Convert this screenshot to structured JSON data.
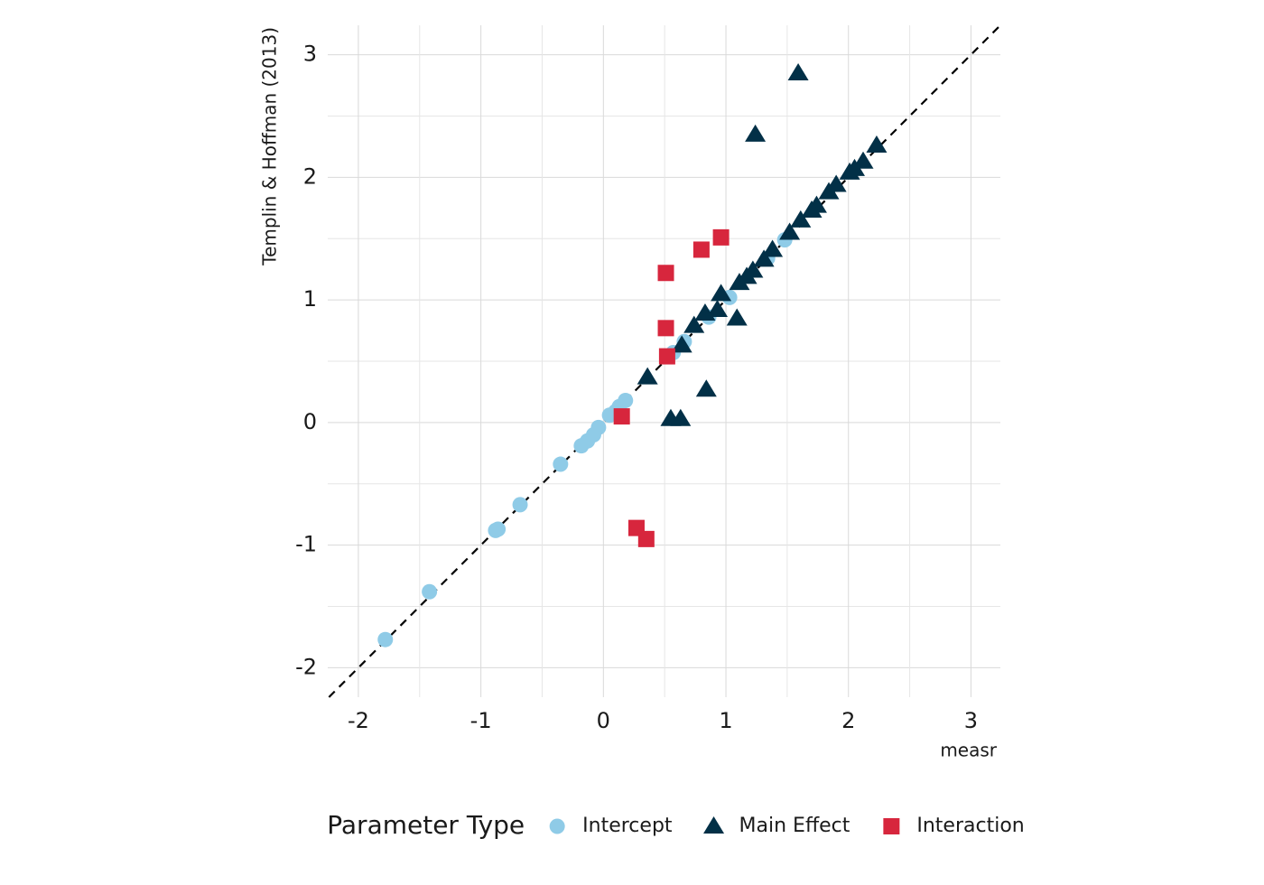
{
  "chart_data": {
    "type": "scatter",
    "x_label": "measr",
    "y_label": "Templin & Hoffman (2013)",
    "legend_title": "Parameter Type",
    "legend_position": "bottom",
    "grid": true,
    "identity_line": true,
    "xlim": [
      -2.25,
      3.24
    ],
    "ylim": [
      -2.24,
      3.24
    ],
    "xticks": [
      -2,
      -1,
      0,
      1,
      2,
      3
    ],
    "yticks": [
      -2,
      -1,
      0,
      1,
      2,
      3
    ],
    "series": [
      {
        "name": "Intercept",
        "color": "#8fcbe7",
        "marker": "circle",
        "x": [
          -1.78,
          -1.42,
          -0.88,
          -0.86,
          -0.68,
          -0.35,
          -0.18,
          -0.13,
          -0.08,
          -0.04,
          0.05,
          0.1,
          0.13,
          0.18,
          0.57,
          0.66,
          0.86,
          1.03,
          1.34,
          1.48
        ],
        "values": [
          -1.77,
          -1.38,
          -0.88,
          -0.87,
          -0.67,
          -0.34,
          -0.19,
          -0.15,
          -0.1,
          -0.04,
          0.06,
          0.09,
          0.13,
          0.18,
          0.57,
          0.66,
          0.86,
          1.02,
          1.34,
          1.49
        ]
      },
      {
        "name": "Main Effect",
        "color": "#023047",
        "marker": "triangle",
        "x": [
          1.59,
          1.24,
          2.23,
          2.12,
          2.05,
          2.01,
          1.9,
          1.84,
          1.74,
          1.7,
          1.61,
          1.52,
          1.38,
          1.31,
          1.22,
          1.17,
          1.11,
          0.96,
          0.93,
          0.83,
          1.09,
          0.74,
          0.64,
          0.36,
          0.84,
          0.55,
          0.63
        ],
        "values": [
          2.85,
          2.35,
          2.26,
          2.13,
          2.07,
          2.04,
          1.94,
          1.88,
          1.77,
          1.73,
          1.65,
          1.55,
          1.41,
          1.33,
          1.24,
          1.19,
          1.14,
          1.05,
          0.92,
          0.89,
          0.85,
          0.79,
          0.63,
          0.37,
          0.27,
          0.03,
          0.03
        ]
      },
      {
        "name": "Interaction",
        "color": "#d7263d",
        "marker": "square",
        "x": [
          0.96,
          0.8,
          0.51,
          0.51,
          0.52,
          0.15,
          0.27,
          0.35
        ],
        "values": [
          1.51,
          1.41,
          1.22,
          0.77,
          0.54,
          0.05,
          -0.86,
          -0.95
        ]
      }
    ]
  }
}
